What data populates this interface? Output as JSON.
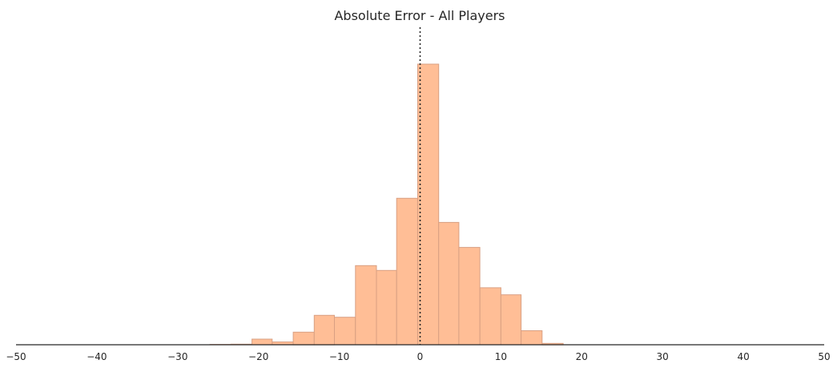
{
  "chart_data": {
    "type": "bar",
    "title": "Absolute Error - All Players",
    "xlabel": "",
    "ylabel": "",
    "xlim": [
      -50,
      50
    ],
    "ylim": [
      0,
      1
    ],
    "grid": false,
    "reference_line": {
      "x": 0,
      "style": "dotted"
    },
    "bar_color": "#ffbe96",
    "bar_edge_color": "#d9a083",
    "x_ticks": [
      -50,
      -40,
      -30,
      -20,
      -10,
      0,
      10,
      20,
      30,
      40,
      50
    ],
    "x_tick_labels": [
      "−50",
      "−40",
      "−30",
      "−20",
      "−10",
      "0",
      "10",
      "20",
      "30",
      "40",
      "50"
    ],
    "bins": [
      {
        "start": -26.0,
        "end": -23.4,
        "value": 0.001
      },
      {
        "start": -23.4,
        "end": -20.8,
        "value": 0.002
      },
      {
        "start": -20.8,
        "end": -18.3,
        "value": 0.02
      },
      {
        "start": -18.3,
        "end": -15.7,
        "value": 0.01
      },
      {
        "start": -15.7,
        "end": -13.1,
        "value": 0.045
      },
      {
        "start": -13.1,
        "end": -10.6,
        "value": 0.105
      },
      {
        "start": -10.6,
        "end": -8.0,
        "value": 0.098
      },
      {
        "start": -8.0,
        "end": -5.4,
        "value": 0.282
      },
      {
        "start": -5.4,
        "end": -2.9,
        "value": 0.265
      },
      {
        "start": -2.9,
        "end": -0.3,
        "value": 0.522
      },
      {
        "start": -0.3,
        "end": 2.3,
        "value": 1.0
      },
      {
        "start": 2.3,
        "end": 4.8,
        "value": 0.436
      },
      {
        "start": 4.8,
        "end": 7.4,
        "value": 0.347
      },
      {
        "start": 7.4,
        "end": 10.0,
        "value": 0.203
      },
      {
        "start": 10.0,
        "end": 12.5,
        "value": 0.178
      },
      {
        "start": 12.5,
        "end": 15.1,
        "value": 0.05
      },
      {
        "start": 15.1,
        "end": 17.7,
        "value": 0.005
      }
    ]
  }
}
